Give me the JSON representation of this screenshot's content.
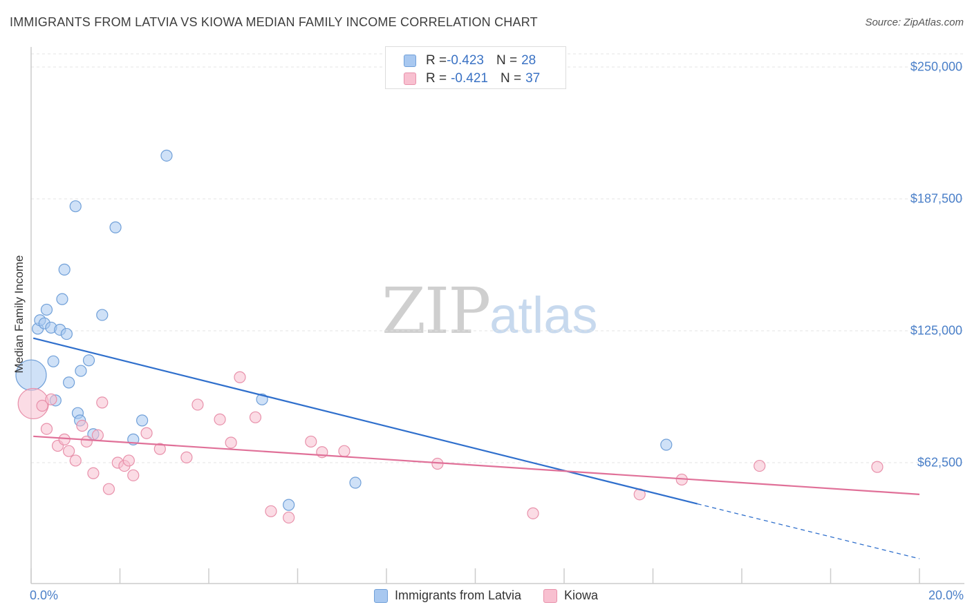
{
  "title": "IMMIGRANTS FROM LATVIA VS KIOWA MEDIAN FAMILY INCOME CORRELATION CHART",
  "source": "Source: ZipAtlas.com",
  "watermark": {
    "zip": "ZIP",
    "atlas": "atlas"
  },
  "legend_stats": [
    {
      "r_label": "R = ",
      "r_value": "-0.423",
      "n_label": "N = ",
      "n_value": "28",
      "color": "#a8c8f0",
      "border": "#6f9fd8"
    },
    {
      "r_label": "R = ",
      "r_value": "-0.421",
      "n_label": "N = ",
      "n_value": "37",
      "color": "#f8c0d0",
      "border": "#e890aa"
    }
  ],
  "chart_data": {
    "type": "scatter",
    "title": "IMMIGRANTS FROM LATVIA VS KIOWA MEDIAN FAMILY INCOME CORRELATION CHART",
    "xlabel": "",
    "ylabel": "Median Family Income",
    "xlim": [
      0,
      20
    ],
    "ylim": [
      8000,
      260000
    ],
    "x_tick_labels": [
      {
        "value": 0,
        "label": "0.0%"
      },
      {
        "value": 20,
        "label": "20.0%"
      }
    ],
    "y_tick_labels": [
      {
        "value": 62500,
        "label": "$62,500"
      },
      {
        "value": 125000,
        "label": "$125,000"
      },
      {
        "value": 187500,
        "label": "$187,500"
      },
      {
        "value": 250000,
        "label": "$250,000"
      }
    ],
    "grid": true,
    "legend_position": "bottom",
    "series": [
      {
        "name": "Immigrants from Latvia",
        "color": "#a8c8f0",
        "stroke": "#6f9fd8",
        "line_color": "#2f6fcc",
        "trend": {
          "x0": 0.05,
          "y0": 121500,
          "x1": 15.0,
          "y1": 43000,
          "dash_to_x": 20.0,
          "dash_to_y": 17000
        },
        "points": [
          {
            "x": 0.0,
            "y": 104000,
            "big": true
          },
          {
            "x": 0.15,
            "y": 126000
          },
          {
            "x": 0.2,
            "y": 130000
          },
          {
            "x": 0.3,
            "y": 128500
          },
          {
            "x": 0.35,
            "y": 135000
          },
          {
            "x": 0.45,
            "y": 126500
          },
          {
            "x": 0.5,
            "y": 110500
          },
          {
            "x": 0.55,
            "y": 92000
          },
          {
            "x": 0.65,
            "y": 125500
          },
          {
            "x": 0.7,
            "y": 140000
          },
          {
            "x": 0.75,
            "y": 154000
          },
          {
            "x": 0.8,
            "y": 123500
          },
          {
            "x": 0.85,
            "y": 100500
          },
          {
            "x": 1.0,
            "y": 184000
          },
          {
            "x": 1.05,
            "y": 86000
          },
          {
            "x": 1.1,
            "y": 82500
          },
          {
            "x": 1.12,
            "y": 106000
          },
          {
            "x": 1.3,
            "y": 111000
          },
          {
            "x": 1.4,
            "y": 76000
          },
          {
            "x": 1.6,
            "y": 132500
          },
          {
            "x": 1.9,
            "y": 174000
          },
          {
            "x": 2.3,
            "y": 73500
          },
          {
            "x": 2.5,
            "y": 82500
          },
          {
            "x": 3.05,
            "y": 208000
          },
          {
            "x": 5.2,
            "y": 92500
          },
          {
            "x": 5.8,
            "y": 42500
          },
          {
            "x": 7.3,
            "y": 53000
          },
          {
            "x": 14.3,
            "y": 71000
          }
        ]
      },
      {
        "name": "Kiowa",
        "color": "#f8c0d0",
        "stroke": "#e890aa",
        "line_color": "#e07098",
        "trend": {
          "x0": 0.05,
          "y0": 75000,
          "x1": 20.0,
          "y1": 47500
        },
        "points": [
          {
            "x": 0.05,
            "y": 90500,
            "big": true
          },
          {
            "x": 0.25,
            "y": 89500
          },
          {
            "x": 0.35,
            "y": 78500
          },
          {
            "x": 0.45,
            "y": 92500
          },
          {
            "x": 0.6,
            "y": 70500
          },
          {
            "x": 0.75,
            "y": 73500
          },
          {
            "x": 0.85,
            "y": 68000
          },
          {
            "x": 1.0,
            "y": 63500
          },
          {
            "x": 1.15,
            "y": 80000
          },
          {
            "x": 1.25,
            "y": 72500
          },
          {
            "x": 1.4,
            "y": 57500
          },
          {
            "x": 1.5,
            "y": 75500
          },
          {
            "x": 1.6,
            "y": 91000
          },
          {
            "x": 1.75,
            "y": 50000
          },
          {
            "x": 1.95,
            "y": 62500
          },
          {
            "x": 2.1,
            "y": 61000
          },
          {
            "x": 2.2,
            "y": 63500
          },
          {
            "x": 2.3,
            "y": 56500
          },
          {
            "x": 2.6,
            "y": 76500
          },
          {
            "x": 2.9,
            "y": 69000
          },
          {
            "x": 3.5,
            "y": 65000
          },
          {
            "x": 3.75,
            "y": 90000
          },
          {
            "x": 4.25,
            "y": 83000
          },
          {
            "x": 4.5,
            "y": 72000
          },
          {
            "x": 4.7,
            "y": 103000
          },
          {
            "x": 5.05,
            "y": 84000
          },
          {
            "x": 5.4,
            "y": 39500
          },
          {
            "x": 5.8,
            "y": 36500
          },
          {
            "x": 6.3,
            "y": 72500
          },
          {
            "x": 6.55,
            "y": 67500
          },
          {
            "x": 7.05,
            "y": 68000
          },
          {
            "x": 9.15,
            "y": 62000
          },
          {
            "x": 11.3,
            "y": 38500
          },
          {
            "x": 13.7,
            "y": 47500
          },
          {
            "x": 14.65,
            "y": 54500
          },
          {
            "x": 16.4,
            "y": 61000
          },
          {
            "x": 19.05,
            "y": 60500
          }
        ]
      }
    ]
  }
}
